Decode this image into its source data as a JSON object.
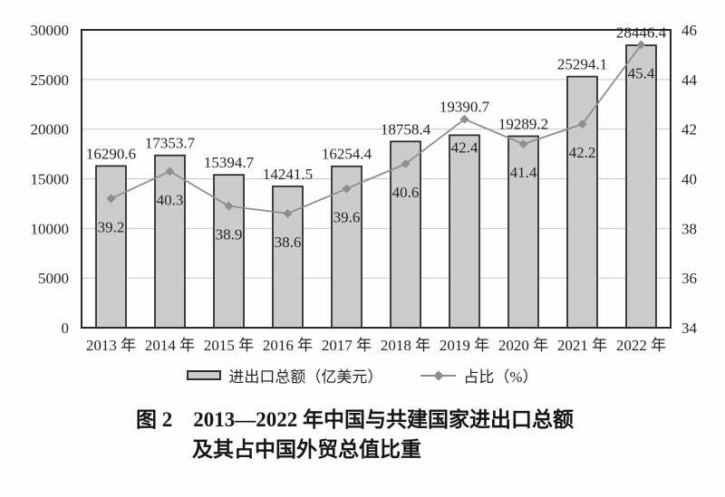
{
  "figure": {
    "caption_line1": "图 2　2013—2022 年中国与共建国家进出口总额",
    "caption_line2": "及其占中国外贸总值比重"
  },
  "legend": {
    "bar_label": "进出口总额（亿美元）",
    "line_label": "占比（%）"
  },
  "colors": {
    "bar_fill": "#cccccc",
    "bar_border": "#2e2e2e",
    "line": "#8e8e8e",
    "marker": "#8e8e8e",
    "grid": "#c9c9c9",
    "axis_border": "#2a2a2a",
    "text": "#242424"
  },
  "chart_data": {
    "type": "bar",
    "subtype": "bar+line combo, dual axis",
    "title": "图 2　2013—2022 年中国与共建国家进出口总额及其占中国外贸总值比重",
    "categories": [
      "2013 年",
      "2014 年",
      "2015 年",
      "2016 年",
      "2017 年",
      "2018 年",
      "2019 年",
      "2020 年",
      "2021 年",
      "2022 年"
    ],
    "series": [
      {
        "name": "进出口总额（亿美元）",
        "type": "bar",
        "axis": "left",
        "values": [
          16290.6,
          17353.7,
          15394.7,
          14241.5,
          16254.4,
          18758.4,
          19390.7,
          19289.2,
          25294.1,
          28446.4
        ]
      },
      {
        "name": "占比（%）",
        "type": "line",
        "axis": "right",
        "marker": "diamond",
        "values": [
          39.2,
          40.3,
          38.9,
          38.6,
          39.6,
          40.6,
          42.4,
          41.4,
          42.2,
          45.4
        ]
      }
    ],
    "left_axis": {
      "min": 0,
      "max": 30000,
      "ticks": [
        0,
        5000,
        10000,
        15000,
        20000,
        25000,
        30000
      ]
    },
    "right_axis": {
      "min": 34,
      "max": 46,
      "ticks": [
        34,
        36,
        38,
        40,
        42,
        44,
        46
      ]
    },
    "grid": "horizontal",
    "value_labels": true,
    "legend_position": "bottom"
  }
}
